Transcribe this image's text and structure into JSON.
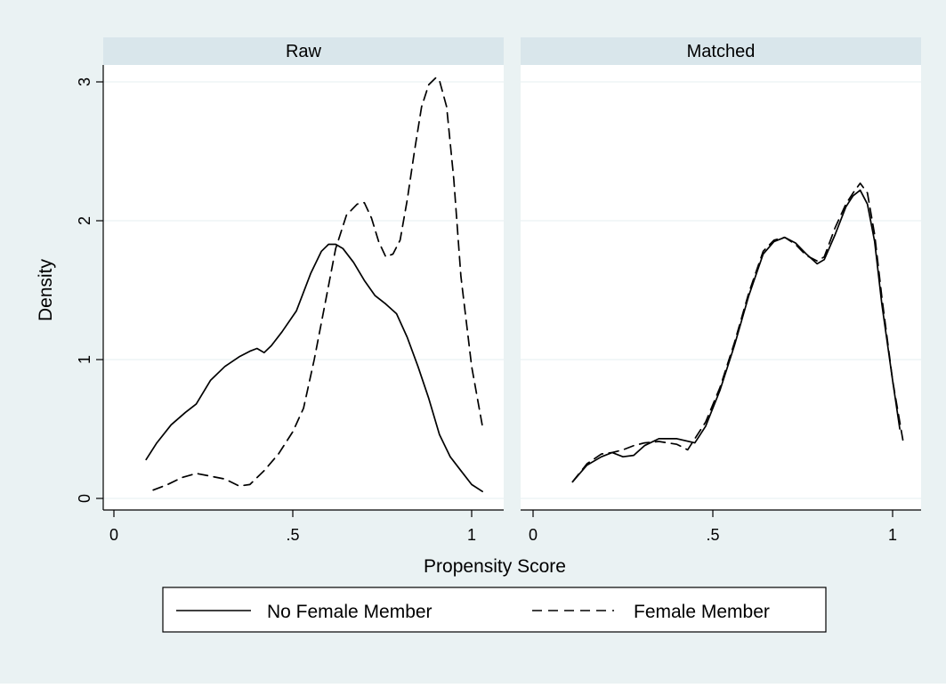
{
  "chart_data": {
    "type": "line",
    "xlabel": "Propensity Score",
    "ylabel": "Density",
    "xlim": [
      0,
      1
    ],
    "ylim": [
      0,
      3
    ],
    "grid": true,
    "legend_position": "bottom",
    "colors": {
      "background": "#eaf2f3",
      "plot_bg": "#ffffff",
      "panel_header": "#d9e6eb",
      "line": "#000000",
      "gridline": "#eaf2f3"
    },
    "x_ticks": [
      {
        "value": 0,
        "label": "0"
      },
      {
        "value": 0.5,
        "label": ".5"
      },
      {
        "value": 1,
        "label": "1"
      }
    ],
    "y_ticks": [
      {
        "value": 0,
        "label": "0"
      },
      {
        "value": 1,
        "label": "1"
      },
      {
        "value": 2,
        "label": "2"
      },
      {
        "value": 3,
        "label": "3"
      }
    ],
    "legend": [
      {
        "label": "No Female Member",
        "style": "solid"
      },
      {
        "label": "Female Member",
        "style": "dashed"
      }
    ],
    "panels": [
      {
        "title": "Raw",
        "series": [
          {
            "name": "No Female Member",
            "style": "solid",
            "x": [
              0.09,
              0.12,
              0.16,
              0.2,
              0.23,
              0.27,
              0.31,
              0.35,
              0.38,
              0.4,
              0.42,
              0.44,
              0.47,
              0.51,
              0.55,
              0.58,
              0.6,
              0.62,
              0.64,
              0.67,
              0.7,
              0.73,
              0.76,
              0.79,
              0.82,
              0.85,
              0.88,
              0.91,
              0.94,
              0.97,
              1.0,
              1.03
            ],
            "y": [
              0.28,
              0.4,
              0.53,
              0.62,
              0.68,
              0.85,
              0.95,
              1.02,
              1.06,
              1.08,
              1.05,
              1.1,
              1.2,
              1.35,
              1.62,
              1.78,
              1.83,
              1.83,
              1.8,
              1.7,
              1.57,
              1.46,
              1.4,
              1.33,
              1.16,
              0.95,
              0.72,
              0.46,
              0.3,
              0.2,
              0.1,
              0.05
            ]
          },
          {
            "name": "Female Member",
            "style": "dashed",
            "x": [
              0.11,
              0.15,
              0.19,
              0.23,
              0.27,
              0.31,
              0.35,
              0.38,
              0.42,
              0.46,
              0.5,
              0.53,
              0.56,
              0.59,
              0.62,
              0.65,
              0.68,
              0.7,
              0.72,
              0.74,
              0.76,
              0.78,
              0.8,
              0.82,
              0.84,
              0.86,
              0.88,
              0.9,
              0.91,
              0.93,
              0.95,
              0.97,
              1.0,
              1.03
            ],
            "y": [
              0.06,
              0.1,
              0.15,
              0.18,
              0.16,
              0.14,
              0.09,
              0.1,
              0.2,
              0.32,
              0.48,
              0.65,
              1.0,
              1.4,
              1.8,
              2.04,
              2.12,
              2.13,
              2.02,
              1.85,
              1.74,
              1.76,
              1.86,
              2.15,
              2.5,
              2.82,
              2.98,
              3.03,
              3.01,
              2.82,
              2.3,
              1.6,
              0.95,
              0.52
            ]
          }
        ]
      },
      {
        "title": "Matched",
        "series": [
          {
            "name": "No Female Member",
            "style": "solid",
            "x": [
              0.11,
              0.15,
              0.19,
              0.22,
              0.25,
              0.28,
              0.31,
              0.35,
              0.4,
              0.45,
              0.48,
              0.52,
              0.56,
              0.6,
              0.64,
              0.67,
              0.7,
              0.73,
              0.76,
              0.79,
              0.81,
              0.84,
              0.87,
              0.89,
              0.91,
              0.93,
              0.95,
              0.97,
              1.0,
              1.02
            ],
            "y": [
              0.12,
              0.24,
              0.3,
              0.33,
              0.3,
              0.31,
              0.38,
              0.43,
              0.43,
              0.4,
              0.52,
              0.78,
              1.1,
              1.46,
              1.76,
              1.85,
              1.88,
              1.84,
              1.76,
              1.69,
              1.72,
              1.9,
              2.1,
              2.18,
              2.22,
              2.12,
              1.85,
              1.4,
              0.85,
              0.5
            ]
          },
          {
            "name": "Female Member",
            "style": "dashed",
            "x": [
              0.11,
              0.15,
              0.19,
              0.22,
              0.25,
              0.28,
              0.31,
              0.35,
              0.4,
              0.43,
              0.45,
              0.48,
              0.52,
              0.56,
              0.6,
              0.64,
              0.67,
              0.7,
              0.73,
              0.76,
              0.79,
              0.81,
              0.84,
              0.87,
              0.89,
              0.91,
              0.93,
              0.95,
              0.97,
              1.0,
              1.03
            ],
            "y": [
              0.12,
              0.25,
              0.32,
              0.33,
              0.35,
              0.38,
              0.4,
              0.41,
              0.39,
              0.35,
              0.43,
              0.55,
              0.8,
              1.12,
              1.48,
              1.78,
              1.86,
              1.88,
              1.83,
              1.75,
              1.71,
              1.74,
              1.95,
              2.12,
              2.2,
              2.27,
              2.2,
              1.9,
              1.45,
              0.85,
              0.4
            ]
          }
        ]
      }
    ]
  }
}
